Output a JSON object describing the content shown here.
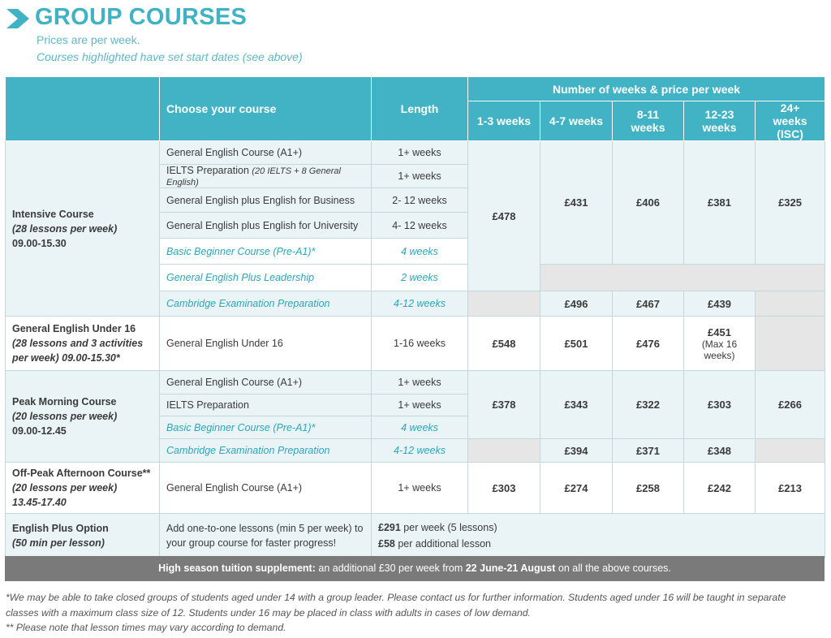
{
  "header": {
    "title": "GROUP COURSES",
    "subtitle": "Prices are per week.",
    "note": "Courses highlighted have set start dates (see above)"
  },
  "table": {
    "head": {
      "course": "Choose your course",
      "length": "Length",
      "group": "Number of weeks & price per week",
      "cols": [
        "1-3 weeks",
        "4-7 weeks",
        "8-11 weeks",
        "12-23 weeks",
        "24+ weeks (ISC)"
      ]
    },
    "intensive": {
      "name": "Intensive Course",
      "sub": "(28 lessons per week)",
      "time": "09.00-15.30",
      "rows": [
        {
          "course": "General English Course (A1+)",
          "length": "1+ weeks"
        },
        {
          "course": "IELTS Preparation",
          "course_note": "(20 IELTS + 8 General English)",
          "length": "1+ weeks"
        },
        {
          "course": "General English plus English for Business",
          "length": "2- 12 weeks"
        },
        {
          "course": "General English plus English for University",
          "length": "4- 12 weeks"
        },
        {
          "course": "Basic Beginner Course (Pre-A1)*",
          "length": "4 weeks"
        },
        {
          "course": "General English Plus Leadership",
          "length": "2 weeks"
        },
        {
          "course": "Cambridge Examination Preparation",
          "length": "4-12 weeks"
        }
      ],
      "prices": [
        "£478",
        "£431",
        "£406",
        "£381",
        "£325"
      ],
      "cambridge_prices": [
        "£496",
        "£467",
        "£439"
      ]
    },
    "under16": {
      "name": "General English Under 16",
      "sub": "(28 lessons and 3 activities per week) 09.00-15.30*",
      "course": "General English Under 16",
      "length": "1-16 weeks",
      "prices": [
        "£548",
        "£501",
        "£476",
        "£451"
      ],
      "note12": "(Max 16 weeks)"
    },
    "peak": {
      "name": "Peak Morning Course",
      "sub": "(20 lessons per week)",
      "time": "09.00-12.45",
      "rows": [
        {
          "course": "General English Course (A1+)",
          "length": "1+ weeks"
        },
        {
          "course": "IELTS Preparation",
          "length": "1+ weeks"
        },
        {
          "course": "Basic Beginner Course (Pre-A1)*",
          "length": "4 weeks"
        },
        {
          "course": "Cambridge Examination Preparation",
          "length": "4-12 weeks"
        }
      ],
      "prices": [
        "£378",
        "£343",
        "£322",
        "£303",
        "£266"
      ],
      "cambridge_prices": [
        "£394",
        "£371",
        "£348"
      ]
    },
    "offpeak": {
      "name": "Off-Peak Afternoon Course**",
      "sub": "(20 lessons per week)",
      "time": "13.45-17.40",
      "course": "General English Course (A1+)",
      "length": "1+ weeks",
      "prices": [
        "£303",
        "£274",
        "£258",
        "£242",
        "£213"
      ]
    },
    "english_plus": {
      "name": "English Plus Option",
      "sub": "(50 min per lesson)",
      "desc": "Add one-to-one lessons (min 5 per week) to your group course for faster progress!",
      "price1": "£291",
      "price1_text": " per week (5 lessons)",
      "price2": "£58",
      "price2_text": " per additional lesson"
    }
  },
  "supplement": {
    "label": "High season tuition supplement:",
    "text1": " an additional £30 per week from ",
    "dates": "22 June-21 August",
    "text2": " on all the above courses."
  },
  "footnotes": {
    "f1": "*We may be able to take closed groups of students aged under 14 with a group leader. Please contact us for further information. Students aged under 16 will be taught in separate classes with a maximum class size of 12. Students under 16 may be placed in class with adults in cases of low demand.",
    "f2": "** Please note that lesson times may vary according to demand."
  },
  "colors": {
    "accent": "#41b3c4",
    "row_bg": "#eaf4f6",
    "grey_cell": "#e6e6e6",
    "supplement_bg": "#7a7a7a"
  }
}
